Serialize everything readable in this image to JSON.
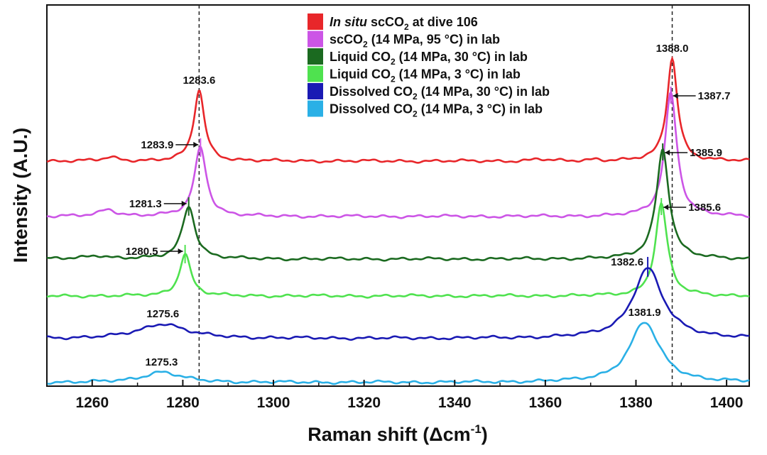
{
  "chart_data": {
    "type": "line",
    "title": "",
    "xlabel": "Raman shift (",
    "xlabel_symbol": "Δ",
    "xlabel_unit": "cm",
    "xlabel_sup": "-1",
    "xlabel_close": ")",
    "ylabel": "Intensity (A.U.)",
    "xlim": [
      1250,
      1405
    ],
    "xticks": [
      1260,
      1280,
      1300,
      1320,
      1340,
      1360,
      1380,
      1400
    ],
    "y_ticks_shown": false,
    "grid": false,
    "legend_position": "top-center",
    "reference_lines_x": [
      1283.6,
      1388.0
    ],
    "series": [
      {
        "name": "In situ scCO2 at dive 106",
        "legend": {
          "italic": "In situ",
          "pre": " scCO",
          "sub": "2",
          "post": " at dive 106"
        },
        "color": "#e8262a",
        "baseline": 0.0,
        "peaks": [
          [
            1283.6,
            1.0,
            1.4
          ],
          [
            1388.0,
            1.45,
            1.4
          ],
          [
            1264,
            0.05,
            2.0
          ],
          [
            1358.5,
            0.03,
            1.5
          ],
          [
            1371,
            0.025,
            1.5
          ]
        ],
        "labels": [
          {
            "x": 1283.6,
            "text": "1283.6"
          },
          {
            "x": 1388.0,
            "text": "1388.0"
          }
        ]
      },
      {
        "name": "scCO2 (14 MPa, 95 °C) in lab",
        "legend": {
          "italic": "",
          "pre": "scCO",
          "sub": "2",
          "post": " (14 MPa, 95 °C) in lab"
        },
        "color": "#cc55e6",
        "baseline": -0.78,
        "peaks": [
          [
            1283.9,
            0.98,
            1.6
          ],
          [
            1387.7,
            1.75,
            1.6
          ],
          [
            1263.5,
            0.1,
            2.2
          ]
        ],
        "labels": [
          {
            "x": 1283.9,
            "text": "1283.9"
          },
          {
            "x": 1387.7,
            "text": "1387.7"
          }
        ]
      },
      {
        "name": "Liquid CO2 (14 MPa, 30 °C) in lab",
        "legend": {
          "italic": "",
          "pre": "Liquid CO",
          "sub": "2",
          "post": " (14 MPa, 30 °C) in lab"
        },
        "color": "#1b6a20",
        "baseline": -1.38,
        "peaks": [
          [
            1281.3,
            0.75,
            1.7
          ],
          [
            1385.9,
            1.55,
            1.7
          ],
          [
            1261,
            0.05,
            3.0
          ]
        ],
        "labels": [
          {
            "x": 1281.3,
            "text": "1281.3"
          },
          {
            "x": 1385.9,
            "text": "1385.9"
          }
        ]
      },
      {
        "name": "Liquid CO2 (14 MPa, 3 °C) in lab",
        "legend": {
          "italic": "",
          "pre": "Liquid CO",
          "sub": "2",
          "post": " (14 MPa, 3 °C) in lab"
        },
        "color": "#4fe24f",
        "baseline": -1.9,
        "peaks": [
          [
            1280.5,
            0.6,
            1.5
          ],
          [
            1385.6,
            1.3,
            1.6
          ]
        ],
        "labels": [
          {
            "x": 1280.5,
            "text": "1280.5"
          },
          {
            "x": 1385.6,
            "text": "1385.6"
          }
        ]
      },
      {
        "name": "Dissolved CO2 (14 MPa, 30 °C) in lab",
        "legend": {
          "italic": "",
          "pre": "Dissolved CO",
          "sub": "2",
          "post": " (14 MPa, 30 °C) in lab"
        },
        "color": "#1a1ab4",
        "baseline": -2.5,
        "peaks": [
          [
            1275.6,
            0.21,
            6.0
          ],
          [
            1382.6,
            0.99,
            4.0
          ]
        ],
        "labels": [
          {
            "x": 1275.6,
            "text": "1275.6"
          },
          {
            "x": 1382.6,
            "text": "1382.6"
          }
        ]
      },
      {
        "name": "Dissolved CO2 (14 MPa, 3 °C) in lab",
        "legend": {
          "italic": "",
          "pre": "Dissolved CO",
          "sub": "2",
          "post": " (14 MPa, 3 °C) in lab"
        },
        "color": "#2ab0e6",
        "baseline": -3.12,
        "peaks": [
          [
            1275.3,
            0.15,
            5.0
          ],
          [
            1381.9,
            0.85,
            4.0
          ]
        ],
        "labels": [
          {
            "x": 1275.3,
            "text": "1275.3"
          },
          {
            "x": 1381.9,
            "text": "1381.9"
          }
        ]
      }
    ]
  }
}
